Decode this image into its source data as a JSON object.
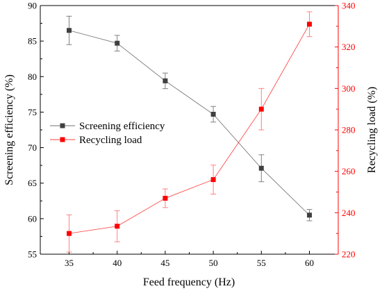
{
  "chart_data": {
    "type": "line",
    "xlabel": "Feed frequency (Hz)",
    "ylabel_left": "Screening efficiency (%)",
    "ylabel_right": "Recycling load (%)",
    "x": [
      35,
      40,
      45,
      50,
      55,
      60
    ],
    "xlim": [
      32,
      63
    ],
    "x_ticks": [
      35,
      40,
      45,
      50,
      55,
      60
    ],
    "ylim_left": [
      55,
      90
    ],
    "y_ticks_left": [
      55,
      60,
      65,
      70,
      75,
      80,
      85,
      90
    ],
    "ylim_right": [
      220,
      340
    ],
    "y_ticks_right": [
      220,
      240,
      260,
      280,
      300,
      320,
      340
    ],
    "grid": false,
    "legend_position": "center-left",
    "series": [
      {
        "name": "Screening efficiency",
        "axis": "left",
        "color": "#404040",
        "marker": "square",
        "values": [
          86.5,
          84.7,
          79.4,
          74.7,
          67.1,
          60.5
        ],
        "errors": [
          2.0,
          1.1,
          1.1,
          1.1,
          1.9,
          0.8
        ]
      },
      {
        "name": "Recycling load",
        "axis": "right",
        "color": "#ff0000",
        "marker": "square",
        "values": [
          230,
          233.5,
          247,
          256,
          290,
          331
        ],
        "errors": [
          9,
          7.5,
          4.5,
          7,
          10,
          6
        ]
      }
    ],
    "axis_colors": {
      "left": "#000000",
      "right": "#ff0000",
      "bottom": "#000000"
    }
  }
}
